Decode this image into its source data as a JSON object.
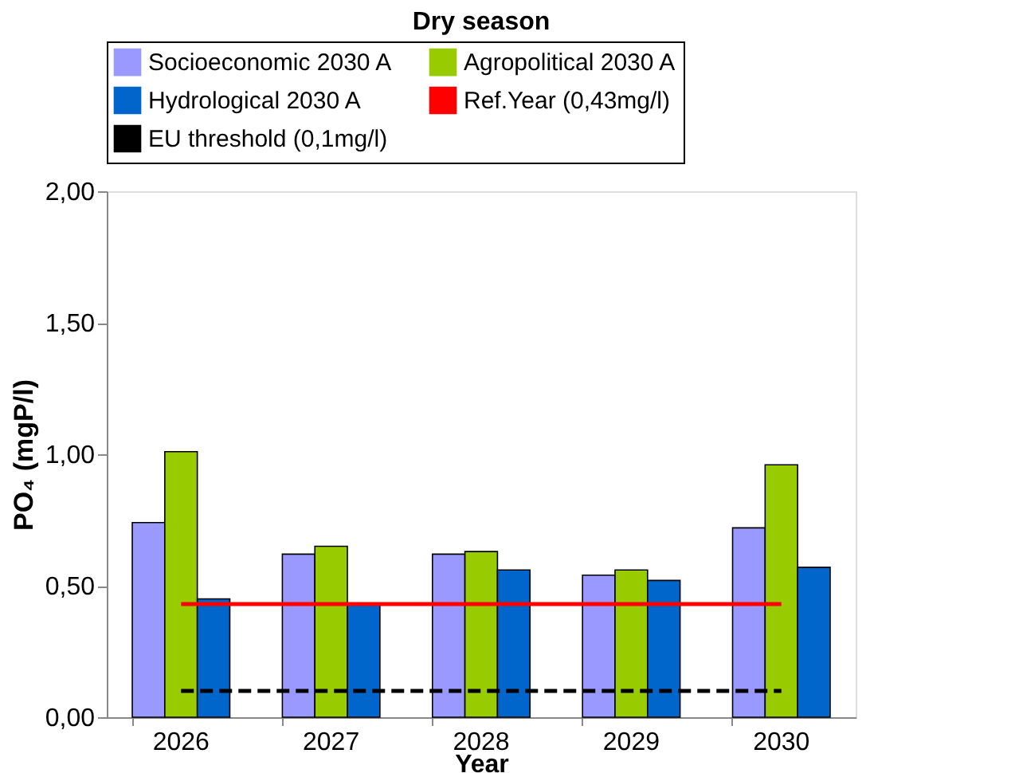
{
  "chart_data": {
    "type": "bar",
    "title": "Dry season",
    "xlabel": "Year",
    "ylabel": "PO₄ (mgP/l)",
    "categories": [
      "2026",
      "2027",
      "2028",
      "2029",
      "2030"
    ],
    "series": [
      {
        "name": "Socioeconomic 2030 A",
        "color": "#9999ff",
        "values": [
          0.74,
          0.62,
          0.62,
          0.54,
          0.72
        ]
      },
      {
        "name": "Agropolitical 2030 A",
        "color": "#99cc00",
        "values": [
          1.01,
          0.65,
          0.63,
          0.56,
          0.96
        ]
      },
      {
        "name": "Hydrological 2030 A",
        "color": "#0066cc",
        "values": [
          0.45,
          0.43,
          0.56,
          0.52,
          0.57
        ]
      },
      {
        "name": "Ref.Year (0,43mg/l)",
        "type": "line",
        "line_style": "solid",
        "color": "#ff0000",
        "values": [
          0.43,
          0.43,
          0.43,
          0.43,
          0.43
        ]
      },
      {
        "name": "EU threshold (0,1mg/l)",
        "type": "line",
        "line_style": "dashed",
        "color": "#000000",
        "values": [
          0.1,
          0.1,
          0.1,
          0.1,
          0.1
        ]
      }
    ],
    "ylim": [
      0,
      2
    ],
    "yticks": [
      {
        "value": 0,
        "label": "0,00"
      },
      {
        "value": 0.5,
        "label": "0,50"
      },
      {
        "value": 1,
        "label": "1,00"
      },
      {
        "value": 1.5,
        "label": "1,50"
      },
      {
        "value": 2,
        "label": "2,00"
      }
    ],
    "grid": false,
    "legend": "top"
  }
}
